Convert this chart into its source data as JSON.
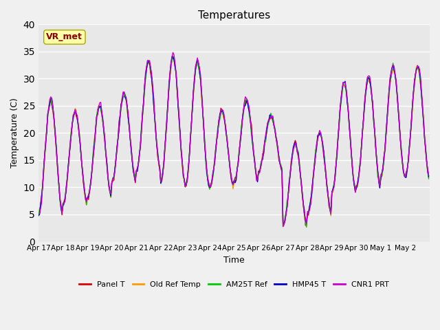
{
  "title": "Temperatures",
  "xlabel": "Time",
  "ylabel": "Temperature (C)",
  "ylim": [
    0,
    40
  ],
  "yticks": [
    0,
    5,
    10,
    15,
    20,
    25,
    30,
    35,
    40
  ],
  "annotation": "VR_met",
  "bg_color": "#e8e8e8",
  "fig_bg_color": "#f0f0f0",
  "line_colors": {
    "Panel T": "#dd0000",
    "Old Ref Temp": "#ff9900",
    "AM25T Ref": "#00cc00",
    "HMP45 T": "#0000cc",
    "CNR1 PRT": "#cc00cc"
  },
  "x_tick_labels": [
    "Apr 17",
    "Apr 18",
    "Apr 19",
    "Apr 20",
    "Apr 21",
    "Apr 22",
    "Apr 23",
    "Apr 24",
    "Apr 25",
    "Apr 26",
    "Apr 27",
    "Apr 28",
    "Apr 29",
    "Apr 30",
    "May 1",
    "May 2"
  ],
  "n_days": 16,
  "pts_per_day": 24,
  "daily_mins": [
    5,
    7,
    8,
    11,
    13,
    11,
    10,
    10,
    11,
    13,
    3,
    5,
    9,
    10,
    12,
    12
  ],
  "daily_maxes": [
    26,
    24,
    25,
    27,
    33,
    34,
    33,
    24,
    26,
    23,
    18,
    20,
    29,
    30,
    32,
    32
  ]
}
